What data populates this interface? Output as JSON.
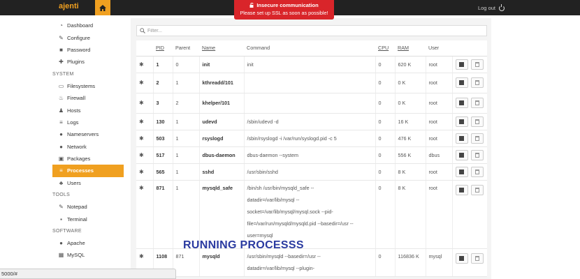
{
  "brand": "ajenti",
  "header": {
    "logout_label": "Log out"
  },
  "alert": {
    "title": "Insecure communication",
    "message": "Please set up SSL as soon as possible!"
  },
  "sidebar": {
    "top_items": [
      {
        "label": "Dashboard",
        "icon": "dashboard-icon"
      },
      {
        "label": "Configure",
        "icon": "wrench-icon"
      },
      {
        "label": "Password",
        "icon": "lock-icon"
      },
      {
        "label": "Plugins",
        "icon": "puzzle-icon"
      }
    ],
    "sections": [
      {
        "title": "SYSTEM",
        "items": [
          {
            "label": "Filesystems",
            "icon": "hdd-icon"
          },
          {
            "label": "Firewall",
            "icon": "fire-icon"
          },
          {
            "label": "Hosts",
            "icon": "sitemap-icon"
          },
          {
            "label": "Logs",
            "icon": "list-icon"
          },
          {
            "label": "Nameservers",
            "icon": "globe-icon"
          },
          {
            "label": "Network",
            "icon": "globe-icon"
          },
          {
            "label": "Packages",
            "icon": "gift-icon"
          },
          {
            "label": "Processes",
            "icon": "list-icon",
            "active": true
          },
          {
            "label": "Users",
            "icon": "users-icon"
          }
        ]
      },
      {
        "title": "TOOLS",
        "items": [
          {
            "label": "Notepad",
            "icon": "edit-icon"
          },
          {
            "label": "Terminal",
            "icon": "terminal-icon"
          }
        ]
      },
      {
        "title": "SOFTWARE",
        "items": [
          {
            "label": "Apache",
            "icon": "globe-icon"
          },
          {
            "label": "MySQL",
            "icon": "table-icon"
          }
        ]
      }
    ]
  },
  "filter": {
    "placeholder": "Filter..."
  },
  "table": {
    "columns": [
      "PID",
      "Parent",
      "Name",
      "Command",
      "CPU",
      "RAM",
      "User"
    ],
    "rows": [
      {
        "pid": "1",
        "parent": "0",
        "name": "init",
        "command": [
          "init"
        ],
        "cpu": "0",
        "ram": "620 K",
        "user": "root"
      },
      {
        "pid": "2",
        "parent": "1",
        "name": "kthreadd/101",
        "command": [
          ""
        ],
        "cpu": "0",
        "ram": "0 K",
        "user": "root"
      },
      {
        "pid": "3",
        "parent": "2",
        "name": "khelper/101",
        "command": [
          ""
        ],
        "cpu": "0",
        "ram": "0 K",
        "user": "root"
      },
      {
        "pid": "130",
        "parent": "1",
        "name": "udevd",
        "command": [
          "/sbin/udevd -d"
        ],
        "cpu": "0",
        "ram": "16 K",
        "user": "root"
      },
      {
        "pid": "503",
        "parent": "1",
        "name": "rsyslogd",
        "command": [
          "/sbin/rsyslogd -i /var/run/syslogd.pid -c 5"
        ],
        "cpu": "0",
        "ram": "476 K",
        "user": "root"
      },
      {
        "pid": "517",
        "parent": "1",
        "name": "dbus-daemon",
        "command": [
          "dbus-daemon --system"
        ],
        "cpu": "0",
        "ram": "556 K",
        "user": "dbus"
      },
      {
        "pid": "565",
        "parent": "1",
        "name": "sshd",
        "command": [
          "/usr/sbin/sshd"
        ],
        "cpu": "0",
        "ram": "8 K",
        "user": "root"
      },
      {
        "pid": "871",
        "parent": "1",
        "name": "mysqld_safe",
        "command": [
          "/bin/sh /usr/bin/mysqld_safe --",
          "datadir=/var/lib/mysql --",
          "socket=/var/lib/mysql/mysql.sock --pid-",
          "file=/var/run/mysqld/mysqld.pid --basedir=/usr --",
          "user=mysql"
        ],
        "cpu": "0",
        "ram": "8 K",
        "user": "root"
      },
      {
        "pid": "1108",
        "parent": "871",
        "name": "mysqld",
        "command": [
          "/usr/sbin/mysqld --basedir=/usr --",
          "datadir=/var/lib/mysql --plugin-"
        ],
        "cpu": "0",
        "ram": "116836 K",
        "user": "mysql"
      }
    ]
  },
  "overlay_caption": "RUNNING PROCESSS",
  "statusbar": "5000/#"
}
